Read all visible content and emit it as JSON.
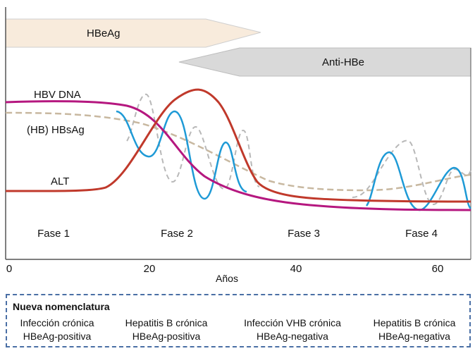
{
  "phases_bars": {
    "hbeag": "HBeAg",
    "anti_hbe": "Anti-HBe"
  },
  "series_labels": {
    "hbv_dna": "HBV DNA",
    "hbsag": "(HB) HBsAg",
    "alt": "ALT"
  },
  "phases": [
    "Fase 1",
    "Fase 2",
    "Fase 3",
    "Fase 4"
  ],
  "axis": {
    "ticks": [
      "0",
      "20",
      "40",
      "60"
    ],
    "xlabel": "Años"
  },
  "nomenclature": {
    "title": "Nueva nomenclatura",
    "stages": [
      {
        "line1": "Infección crónica",
        "line2": "HBeAg-positiva"
      },
      {
        "line1": "Hepatitis B crónica",
        "line2": "HBeAg-positiva"
      },
      {
        "line1": "Infección VHB crónica",
        "line2": "HBeAg-negativa"
      },
      {
        "line1": "Hepatitis B crónica",
        "line2": "HBeAg-negativa"
      }
    ]
  },
  "colors": {
    "hbv_dna": "#b5177f",
    "alt": "#c0392b",
    "hbsag": "#c8b8a0",
    "fluctuation_blue": "#1e9ad6",
    "fluctuation_grey": "#b8b8b8",
    "hbeag_bar": "#f8ebdc",
    "anti_hbe_bar": "#d9d9d9"
  }
}
